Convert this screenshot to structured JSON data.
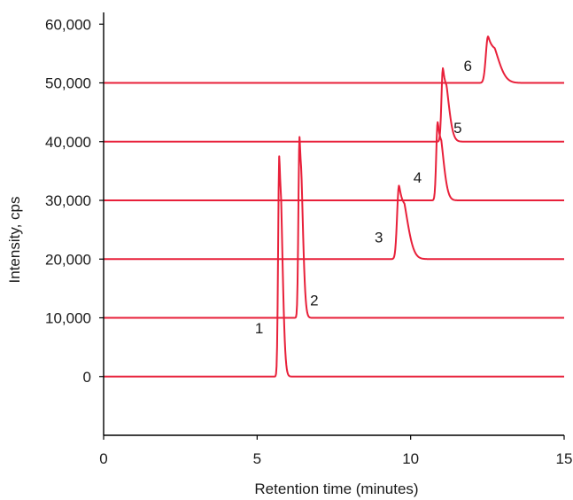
{
  "chart_data": {
    "type": "line",
    "title": "",
    "xlabel": "Retention time (minutes)",
    "ylabel": "Intensity, cps",
    "xlim": [
      0,
      15
    ],
    "ylim": [
      -10000,
      62000
    ],
    "x_ticks": [
      0,
      5,
      10,
      15
    ],
    "x_tick_labels": [
      "0",
      "5",
      "10",
      "15"
    ],
    "y_ticks": [
      0,
      10000,
      20000,
      30000,
      40000,
      50000,
      60000
    ],
    "y_tick_labels": [
      "0",
      "10,000",
      "20,000",
      "30,000",
      "40,000",
      "50,000",
      "60,000"
    ],
    "grid": false,
    "legend": "none",
    "color": "#e8203a",
    "series": [
      {
        "label": "1",
        "baseline": 0,
        "peak_x": 5.72,
        "peak_y": 37500,
        "width": 0.035,
        "tail": 0.06
      },
      {
        "label": "2",
        "baseline": 10000,
        "peak_x": 6.38,
        "peak_y": 40800,
        "width": 0.035,
        "tail": 0.06
      },
      {
        "label": "3",
        "baseline": 20000,
        "peak_x": 9.62,
        "peak_y": 32500,
        "width": 0.06,
        "tail": 0.18
      },
      {
        "label": "4",
        "baseline": 30000,
        "peak_x": 10.88,
        "peak_y": 43300,
        "width": 0.045,
        "tail": 0.12
      },
      {
        "label": "5",
        "baseline": 40000,
        "peak_x": 11.05,
        "peak_y": 52500,
        "width": 0.045,
        "tail": 0.12
      },
      {
        "label": "6",
        "baseline": 50000,
        "peak_x": 12.52,
        "peak_y": 57900,
        "width": 0.07,
        "tail": 0.22
      }
    ]
  }
}
